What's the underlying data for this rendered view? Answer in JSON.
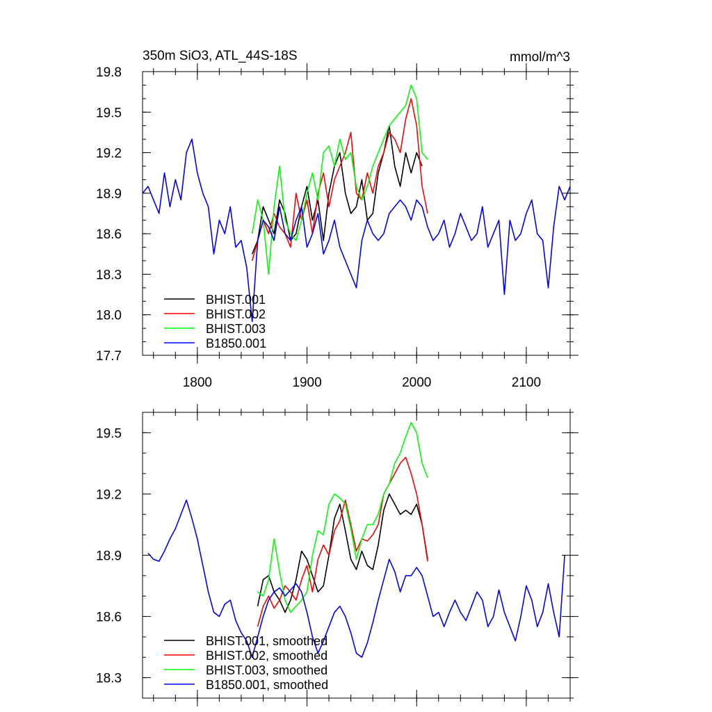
{
  "chart_data": [
    {
      "type": "line",
      "title": "350m SiO3, ATL_44S-18S",
      "units": "mmol/m^3",
      "xlim": [
        1750,
        2140
      ],
      "ylim": [
        17.7,
        19.8
      ],
      "xticks": [
        1800,
        1900,
        2000,
        2100
      ],
      "xtick_labels": [
        "1800",
        "1900",
        "2000",
        "2100"
      ],
      "yticks": [
        17.7,
        18.0,
        18.3,
        18.6,
        18.9,
        19.2,
        19.5,
        19.8
      ],
      "ytick_labels": [
        "17.7",
        "18.0",
        "18.3",
        "18.6",
        "18.9",
        "19.2",
        "19.5",
        "19.8"
      ],
      "legend_position": "bottom-left",
      "series": [
        {
          "name": "BHIST.001",
          "color": "#000000",
          "x": [
            1850,
            1855,
            1860,
            1865,
            1870,
            1875,
            1880,
            1885,
            1890,
            1895,
            1900,
            1905,
            1910,
            1915,
            1920,
            1925,
            1930,
            1935,
            1940,
            1945,
            1950,
            1955,
            1960,
            1965,
            1970,
            1975,
            1980,
            1985,
            1990,
            1995,
            2000,
            2005
          ],
          "y": [
            18.45,
            18.55,
            18.8,
            18.7,
            18.6,
            18.85,
            18.75,
            18.55,
            18.6,
            18.8,
            18.95,
            18.7,
            18.85,
            18.55,
            18.9,
            19.1,
            19.2,
            18.9,
            18.75,
            18.8,
            19.0,
            18.7,
            18.75,
            19.05,
            19.2,
            19.4,
            19.1,
            18.95,
            19.2,
            19.05,
            19.2,
            19.1
          ]
        },
        {
          "name": "BHIST.002",
          "color": "#ff0000",
          "x": [
            1850,
            1855,
            1860,
            1865,
            1870,
            1875,
            1880,
            1885,
            1890,
            1895,
            1900,
            1905,
            1910,
            1915,
            1920,
            1925,
            1930,
            1935,
            1940,
            1945,
            1950,
            1955,
            1960,
            1965,
            1970,
            1975,
            1980,
            1985,
            1990,
            1995,
            2000,
            2005,
            2010
          ],
          "y": [
            18.4,
            18.55,
            18.7,
            18.6,
            18.75,
            18.65,
            18.6,
            18.5,
            18.9,
            18.7,
            18.85,
            18.6,
            18.9,
            19.05,
            18.8,
            19.0,
            19.1,
            19.2,
            19.35,
            18.9,
            18.85,
            19.05,
            18.9,
            19.1,
            19.2,
            19.35,
            19.3,
            19.2,
            19.45,
            19.6,
            19.4,
            18.95,
            18.75
          ]
        },
        {
          "name": "BHIST.003",
          "color": "#00ff00",
          "x": [
            1850,
            1855,
            1860,
            1865,
            1870,
            1875,
            1880,
            1885,
            1890,
            1895,
            1900,
            1905,
            1910,
            1915,
            1920,
            1925,
            1930,
            1935,
            1940,
            1945,
            1950,
            1955,
            1960,
            1965,
            1970,
            1975,
            1980,
            1985,
            1990,
            1995,
            2000,
            2005,
            2010
          ],
          "y": [
            18.6,
            18.85,
            18.7,
            18.3,
            18.8,
            19.1,
            18.7,
            18.6,
            18.55,
            18.7,
            18.9,
            19.05,
            18.85,
            19.2,
            19.25,
            19.1,
            19.3,
            19.15,
            19.2,
            18.95,
            18.85,
            18.95,
            19.1,
            19.2,
            19.3,
            19.4,
            19.45,
            19.5,
            19.55,
            19.7,
            19.6,
            19.2,
            19.15
          ]
        },
        {
          "name": "B1850.001",
          "color": "#0000ff",
          "x": [
            1750,
            1755,
            1760,
            1765,
            1770,
            1775,
            1780,
            1785,
            1790,
            1795,
            1800,
            1805,
            1810,
            1815,
            1820,
            1825,
            1830,
            1835,
            1840,
            1845,
            1850,
            1855,
            1860,
            1865,
            1870,
            1875,
            1880,
            1885,
            1890,
            1895,
            1900,
            1905,
            1910,
            1915,
            1920,
            1925,
            1930,
            1935,
            1940,
            1945,
            1950,
            1955,
            1960,
            1965,
            1970,
            1975,
            1980,
            1985,
            1990,
            1995,
            2000,
            2005,
            2010,
            2015,
            2020,
            2025,
            2030,
            2035,
            2040,
            2045,
            2050,
            2055,
            2060,
            2065,
            2070,
            2075,
            2080,
            2085,
            2090,
            2095,
            2100,
            2105,
            2110,
            2115,
            2120,
            2125,
            2130,
            2135,
            2140
          ],
          "y": [
            18.9,
            18.95,
            18.85,
            18.75,
            19.05,
            18.8,
            19.0,
            18.85,
            19.2,
            19.3,
            19.05,
            18.9,
            18.8,
            18.45,
            18.7,
            18.6,
            18.8,
            18.5,
            18.55,
            18.35,
            17.95,
            18.55,
            18.7,
            18.65,
            18.55,
            18.8,
            18.6,
            18.55,
            18.7,
            18.8,
            18.5,
            18.6,
            18.75,
            18.45,
            18.55,
            18.7,
            18.5,
            18.4,
            18.3,
            18.2,
            18.55,
            18.7,
            18.6,
            18.55,
            18.6,
            18.75,
            18.8,
            18.85,
            18.8,
            18.7,
            18.85,
            18.8,
            18.65,
            18.55,
            18.6,
            18.7,
            18.5,
            18.6,
            18.75,
            18.65,
            18.55,
            18.6,
            18.8,
            18.5,
            18.6,
            18.7,
            18.15,
            18.7,
            18.55,
            18.6,
            18.75,
            18.85,
            18.6,
            18.55,
            18.2,
            18.65,
            18.95,
            18.85,
            18.95
          ]
        }
      ]
    },
    {
      "type": "line",
      "title": "",
      "xlim": [
        1750,
        2140
      ],
      "ylim": [
        18.2,
        19.6
      ],
      "xticks": [
        1800,
        1900,
        2000,
        2100
      ],
      "xtick_labels": [],
      "yticks": [
        18.3,
        18.6,
        18.9,
        19.2,
        19.5
      ],
      "ytick_labels": [
        "18.3",
        "18.6",
        "18.9",
        "19.2",
        "19.5"
      ],
      "legend_position": "bottom-left",
      "series": [
        {
          "name": "BHIST.001, smoothed",
          "color": "#000000",
          "x": [
            1855,
            1860,
            1865,
            1870,
            1875,
            1880,
            1885,
            1890,
            1895,
            1900,
            1905,
            1910,
            1915,
            1920,
            1925,
            1930,
            1935,
            1940,
            1945,
            1950,
            1955,
            1960,
            1965,
            1970,
            1975,
            1980,
            1985,
            1990,
            1995,
            2000,
            2005,
            2010
          ],
          "y": [
            18.65,
            18.78,
            18.8,
            18.72,
            18.68,
            18.62,
            18.68,
            18.78,
            18.92,
            18.88,
            18.8,
            18.72,
            18.75,
            18.9,
            19.08,
            19.15,
            19.02,
            18.88,
            18.83,
            18.92,
            18.85,
            18.83,
            18.95,
            19.12,
            19.2,
            19.15,
            19.1,
            19.12,
            19.1,
            19.15,
            19.05,
            18.88
          ]
        },
        {
          "name": "BHIST.002, smoothed",
          "color": "#ff0000",
          "x": [
            1855,
            1860,
            1865,
            1870,
            1875,
            1880,
            1885,
            1890,
            1895,
            1900,
            1905,
            1910,
            1915,
            1920,
            1925,
            1930,
            1935,
            1940,
            1945,
            1950,
            1955,
            1960,
            1965,
            1970,
            1975,
            1980,
            1985,
            1990,
            1995,
            2000,
            2005,
            2010
          ],
          "y": [
            18.55,
            18.65,
            18.7,
            18.64,
            18.68,
            18.75,
            18.72,
            18.68,
            18.78,
            18.85,
            18.72,
            18.88,
            18.95,
            18.9,
            19.02,
            19.07,
            19.17,
            19.05,
            18.92,
            18.98,
            18.97,
            19.0,
            19.05,
            19.2,
            19.25,
            19.3,
            19.35,
            19.38,
            19.3,
            19.2,
            19.05,
            18.87
          ]
        },
        {
          "name": "BHIST.003, smoothed",
          "color": "#00ff00",
          "x": [
            1855,
            1860,
            1865,
            1870,
            1875,
            1880,
            1885,
            1890,
            1895,
            1900,
            1905,
            1910,
            1915,
            1920,
            1925,
            1930,
            1935,
            1940,
            1945,
            1950,
            1955,
            1960,
            1965,
            1970,
            1975,
            1980,
            1985,
            1990,
            1995,
            2000,
            2005,
            2010
          ],
          "y": [
            18.72,
            18.7,
            18.78,
            18.98,
            18.82,
            18.68,
            18.62,
            18.65,
            18.68,
            18.72,
            18.9,
            19.02,
            19.0,
            19.15,
            19.2,
            19.18,
            19.15,
            19.03,
            18.88,
            18.98,
            19.05,
            19.05,
            19.1,
            19.2,
            19.25,
            19.35,
            19.4,
            19.48,
            19.55,
            19.5,
            19.35,
            19.28
          ]
        },
        {
          "name": "B1850.001, smoothed",
          "color": "#0000ff",
          "x": [
            1755,
            1760,
            1765,
            1770,
            1775,
            1780,
            1785,
            1790,
            1795,
            1800,
            1805,
            1810,
            1815,
            1820,
            1825,
            1830,
            1835,
            1840,
            1845,
            1850,
            1855,
            1860,
            1865,
            1870,
            1875,
            1880,
            1885,
            1890,
            1895,
            1900,
            1905,
            1910,
            1915,
            1920,
            1925,
            1930,
            1935,
            1940,
            1945,
            1950,
            1955,
            1960,
            1965,
            1970,
            1975,
            1980,
            1985,
            1990,
            1995,
            2000,
            2005,
            2010,
            2015,
            2020,
            2025,
            2030,
            2035,
            2040,
            2045,
            2050,
            2055,
            2060,
            2065,
            2070,
            2075,
            2080,
            2085,
            2090,
            2095,
            2100,
            2105,
            2110,
            2115,
            2120,
            2125,
            2130,
            2135
          ],
          "y": [
            18.91,
            18.88,
            18.87,
            18.92,
            18.98,
            19.03,
            19.1,
            19.17,
            19.08,
            18.98,
            18.85,
            18.72,
            18.62,
            18.6,
            18.66,
            18.68,
            18.58,
            18.52,
            18.48,
            18.4,
            18.5,
            18.6,
            18.68,
            18.72,
            18.74,
            18.7,
            18.73,
            18.76,
            18.72,
            18.62,
            18.5,
            18.42,
            18.48,
            18.55,
            18.62,
            18.65,
            18.6,
            18.52,
            18.42,
            18.4,
            18.47,
            18.57,
            18.68,
            18.78,
            18.88,
            18.82,
            18.72,
            18.8,
            18.8,
            18.84,
            18.8,
            18.7,
            18.6,
            18.62,
            18.55,
            18.62,
            18.68,
            18.62,
            18.58,
            18.65,
            18.72,
            18.68,
            18.55,
            18.6,
            18.73,
            18.62,
            18.55,
            18.48,
            18.6,
            18.75,
            18.68,
            18.55,
            18.62,
            18.76,
            18.62,
            18.5,
            18.9
          ]
        }
      ]
    }
  ]
}
